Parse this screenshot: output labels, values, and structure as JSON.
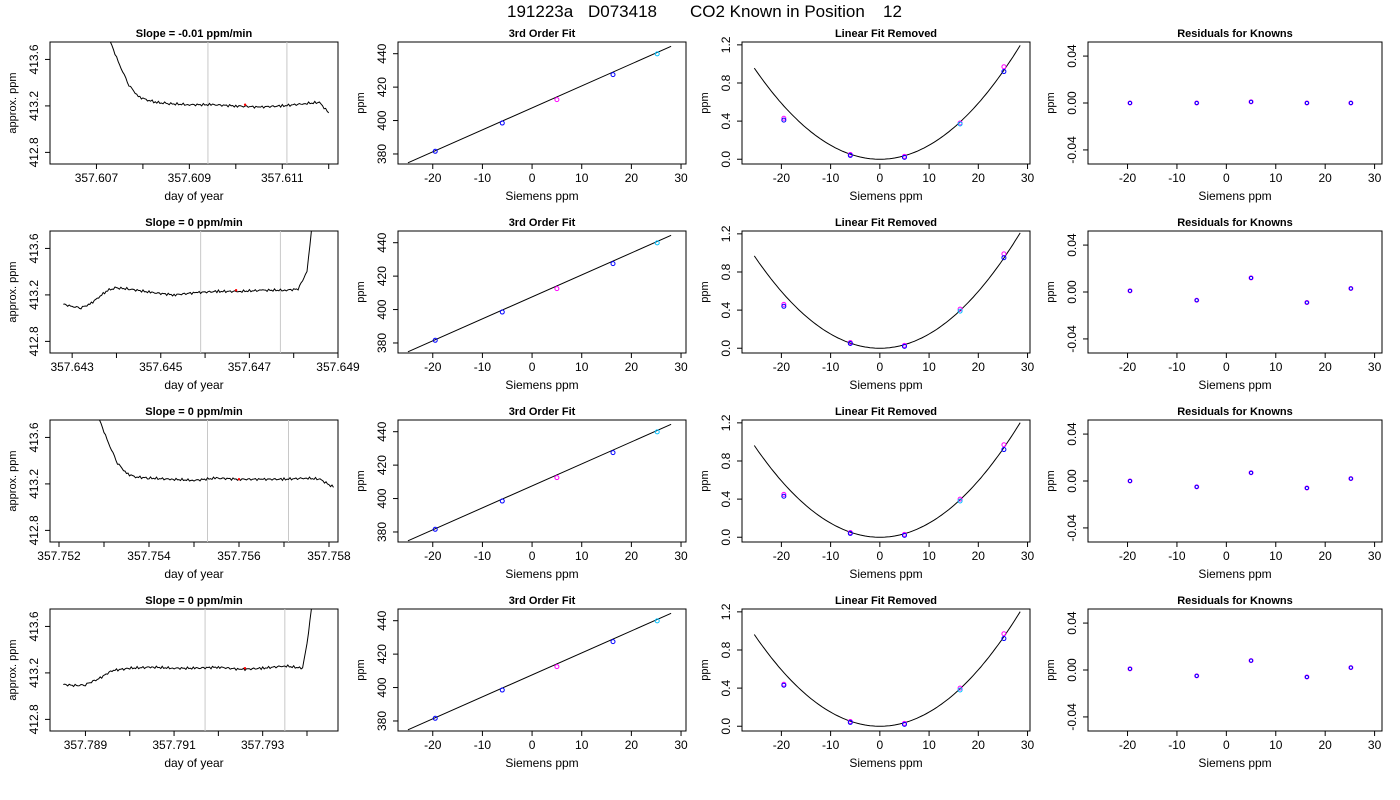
{
  "page_title": {
    "run_id": "191223a",
    "tank_id": "D073418",
    "description": "CO2 Known in Position",
    "position": "12"
  },
  "colors": {
    "trace": "#000000",
    "marker_line": "#c8c8c8",
    "points_primary": "#0000ff",
    "points_secondary": "#ff00ff",
    "points_cyan": "#00c0ff",
    "marker_red": "#ff0000"
  },
  "chart_data": [
    {
      "type": "line",
      "panel": "time-series",
      "row": 1,
      "title": "Slope =  -0.01  ppm/min",
      "xlabel": "day of year",
      "ylabel": "approx. ppm",
      "xlim": [
        357.606,
        357.6122
      ],
      "ylim": [
        412.7,
        413.75
      ],
      "xticks": [
        357.607,
        357.608,
        357.609,
        357.61,
        357.611,
        357.612
      ],
      "xtick_labels": [
        "357.607",
        "",
        "357.609",
        "",
        "357.611",
        ""
      ],
      "yticks": [
        412.8,
        413.2,
        413.6
      ],
      "ytick_labels": [
        "412.8",
        "413.2",
        "413.6"
      ],
      "x": [
        357.6073,
        357.6075,
        357.6077,
        357.6079,
        357.6081,
        357.6083,
        357.6085,
        357.609,
        357.6095,
        357.61,
        357.6105,
        357.611,
        357.6115,
        357.6118,
        357.612
      ],
      "y": [
        413.75,
        413.55,
        413.38,
        413.28,
        413.25,
        413.23,
        413.22,
        413.21,
        413.21,
        413.2,
        413.19,
        413.2,
        413.22,
        413.23,
        413.14
      ],
      "markers": [
        357.6094,
        357.6111
      ],
      "red_points": [
        [
          357.6102,
          413.21
        ]
      ]
    },
    {
      "type": "scatter",
      "panel": "fit",
      "row": 1,
      "title": "3rd Order Fit",
      "xlabel": "Siemens ppm",
      "ylabel": "ppm",
      "xlim": [
        -27,
        31
      ],
      "ylim": [
        374,
        447
      ],
      "xticks": [
        -20,
        -10,
        0,
        10,
        20,
        30
      ],
      "yticks": [
        380,
        400,
        420,
        440
      ],
      "x": [
        -19.5,
        -6.0,
        5.0,
        16.3,
        25.2
      ],
      "y": [
        381.6,
        398.5,
        412.5,
        427.5,
        439.9
      ],
      "line": [
        [
          -25,
          374.7
        ],
        [
          28,
          444.4
        ]
      ]
    },
    {
      "type": "scatter",
      "panel": "linear-removed",
      "row": 1,
      "title": "Linear Fit Removed",
      "xlabel": "Siemens ppm",
      "ylabel": "ppm",
      "xlim": [
        -28,
        30.5
      ],
      "ylim": [
        -0.05,
        1.23
      ],
      "xticks": [
        -20,
        -10,
        0,
        10,
        20,
        30
      ],
      "yticks": [
        0.0,
        0.4,
        0.8,
        1.2
      ],
      "ytick_labels": [
        "0.0",
        "0.4",
        "0.8",
        "1.2"
      ],
      "x": [
        -19.5,
        -6.0,
        5.0,
        16.3,
        25.2
      ],
      "y": [
        0.41,
        0.04,
        0.02,
        0.37,
        0.92
      ],
      "y_secondary": [
        0.43,
        0.05,
        0.03,
        0.38,
        0.97
      ],
      "curve_a": 0.00147,
      "curve_range": [
        -25.5,
        28.5
      ]
    },
    {
      "type": "scatter",
      "panel": "residuals",
      "row": 1,
      "title": "Residuals for Knowns",
      "xlabel": "Siemens ppm",
      "ylabel": "ppm",
      "xlim": [
        -28,
        31.5
      ],
      "ylim": [
        -0.052,
        0.052
      ],
      "xticks": [
        -20,
        -10,
        0,
        10,
        20,
        30
      ],
      "yticks": [
        -0.04,
        0.0,
        0.04
      ],
      "ytick_labels": [
        "-0.04",
        "0.00",
        "0.04"
      ],
      "x": [
        -19.5,
        -6.0,
        5.0,
        16.3,
        25.2
      ],
      "y": [
        0.0,
        0.0,
        0.001,
        0.0,
        0.0
      ]
    },
    {
      "type": "line",
      "panel": "time-series",
      "row": 2,
      "title": "Slope =  0  ppm/min",
      "xlabel": "day of year",
      "ylabel": "approx. ppm",
      "xlim": [
        357.6425,
        357.649
      ],
      "ylim": [
        412.7,
        413.75
      ],
      "xticks": [
        357.643,
        357.644,
        357.645,
        357.646,
        357.647,
        357.648,
        357.649
      ],
      "xtick_labels": [
        "357.643",
        "",
        "357.645",
        "",
        "357.647",
        "",
        "357.649"
      ],
      "yticks": [
        412.8,
        413.2,
        413.6
      ],
      "ytick_labels": [
        "412.8",
        "413.2",
        "413.6"
      ],
      "x": [
        357.6428,
        357.643,
        357.6432,
        357.6434,
        357.6436,
        357.6438,
        357.644,
        357.6443,
        357.6448,
        357.6453,
        357.6458,
        357.6463,
        357.6468,
        357.6473,
        357.6478,
        357.6481,
        357.6483,
        357.6484
      ],
      "y": [
        413.12,
        413.1,
        413.09,
        413.12,
        413.18,
        413.24,
        413.26,
        413.25,
        413.22,
        413.2,
        413.22,
        413.23,
        413.23,
        413.24,
        413.24,
        413.25,
        413.4,
        413.75
      ],
      "markers": [
        357.6459,
        357.6477
      ],
      "red_points": [
        [
          357.6467,
          413.24
        ]
      ]
    },
    {
      "type": "scatter",
      "panel": "fit",
      "row": 2,
      "title": "3rd Order Fit",
      "xlabel": "Siemens ppm",
      "ylabel": "ppm",
      "xlim": [
        -27,
        31
      ],
      "ylim": [
        374,
        447
      ],
      "xticks": [
        -20,
        -10,
        0,
        10,
        20,
        30
      ],
      "yticks": [
        380,
        400,
        420,
        440
      ],
      "x": [
        -19.5,
        -6.0,
        5.0,
        16.3,
        25.2
      ],
      "y": [
        381.6,
        398.5,
        412.5,
        427.5,
        439.9
      ],
      "line": [
        [
          -25,
          374.7
        ],
        [
          28,
          444.4
        ]
      ]
    },
    {
      "type": "scatter",
      "panel": "linear-removed",
      "row": 2,
      "title": "Linear Fit Removed",
      "xlabel": "Siemens ppm",
      "ylabel": "ppm",
      "xlim": [
        -28,
        30.5
      ],
      "ylim": [
        -0.05,
        1.23
      ],
      "xticks": [
        -20,
        -10,
        0,
        10,
        20,
        30
      ],
      "yticks": [
        0.0,
        0.4,
        0.8,
        1.2
      ],
      "ytick_labels": [
        "0.0",
        "0.4",
        "0.8",
        "1.2"
      ],
      "x": [
        -19.5,
        -6.0,
        5.0,
        16.3,
        25.2
      ],
      "y": [
        0.44,
        0.05,
        0.02,
        0.39,
        0.95
      ],
      "y_secondary": [
        0.46,
        0.06,
        0.03,
        0.41,
        0.99
      ],
      "curve_a": 0.00149,
      "curve_range": [
        -25.5,
        28.5
      ]
    },
    {
      "type": "scatter",
      "panel": "residuals",
      "row": 2,
      "title": "Residuals for Knowns",
      "xlabel": "Siemens ppm",
      "ylabel": "ppm",
      "xlim": [
        -28,
        31.5
      ],
      "ylim": [
        -0.052,
        0.052
      ],
      "xticks": [
        -20,
        -10,
        0,
        10,
        20,
        30
      ],
      "yticks": [
        -0.04,
        0.0,
        0.04
      ],
      "ytick_labels": [
        "-0.04",
        "0.00",
        "0.04"
      ],
      "x": [
        -19.5,
        -6.0,
        5.0,
        16.3,
        25.2
      ],
      "y": [
        0.001,
        -0.007,
        0.012,
        -0.009,
        0.003
      ]
    },
    {
      "type": "line",
      "panel": "time-series",
      "row": 3,
      "title": "Slope =  0  ppm/min",
      "xlabel": "day of year",
      "ylabel": "approx. ppm",
      "xlim": [
        357.7518,
        357.7582
      ],
      "ylim": [
        412.7,
        413.75
      ],
      "xticks": [
        357.752,
        357.753,
        357.754,
        357.755,
        357.756,
        357.757,
        357.758
      ],
      "xtick_labels": [
        "357.752",
        "",
        "357.754",
        "",
        "357.756",
        "",
        "357.758"
      ],
      "yticks": [
        412.8,
        413.2,
        413.6
      ],
      "ytick_labels": [
        "412.8",
        "413.2",
        "413.6"
      ],
      "x": [
        357.7529,
        357.7531,
        357.7533,
        357.7535,
        357.7537,
        357.754,
        357.7545,
        357.755,
        357.7555,
        357.756,
        357.7565,
        357.757,
        357.7575,
        357.7578,
        357.7581
      ],
      "y": [
        413.75,
        413.55,
        413.38,
        413.29,
        413.26,
        413.25,
        413.24,
        413.23,
        413.25,
        413.24,
        413.24,
        413.24,
        413.25,
        413.24,
        413.17
      ],
      "markers": [
        357.7553,
        357.7571
      ],
      "red_points": [
        [
          357.756,
          413.24
        ]
      ]
    },
    {
      "type": "scatter",
      "panel": "fit",
      "row": 3,
      "title": "3rd Order Fit",
      "xlabel": "Siemens ppm",
      "ylabel": "ppm",
      "xlim": [
        -27,
        31
      ],
      "ylim": [
        374,
        447
      ],
      "xticks": [
        -20,
        -10,
        0,
        10,
        20,
        30
      ],
      "yticks": [
        380,
        400,
        420,
        440
      ],
      "x": [
        -19.5,
        -6.0,
        5.0,
        16.3,
        25.2
      ],
      "y": [
        381.6,
        398.5,
        412.5,
        427.5,
        439.9
      ],
      "line": [
        [
          -25,
          374.7
        ],
        [
          28,
          444.4
        ]
      ]
    },
    {
      "type": "scatter",
      "panel": "linear-removed",
      "row": 3,
      "title": "Linear Fit Removed",
      "xlabel": "Siemens ppm",
      "ylabel": "ppm",
      "xlim": [
        -28,
        30.5
      ],
      "ylim": [
        -0.05,
        1.23
      ],
      "xticks": [
        -20,
        -10,
        0,
        10,
        20,
        30
      ],
      "yticks": [
        0.0,
        0.4,
        0.8,
        1.2
      ],
      "ytick_labels": [
        "0.0",
        "0.4",
        "0.8",
        "1.2"
      ],
      "x": [
        -19.5,
        -6.0,
        5.0,
        16.3,
        25.2
      ],
      "y": [
        0.43,
        0.04,
        0.02,
        0.38,
        0.92
      ],
      "y_secondary": [
        0.45,
        0.05,
        0.03,
        0.4,
        0.97
      ],
      "curve_a": 0.00148,
      "curve_range": [
        -25.5,
        28.5
      ]
    },
    {
      "type": "scatter",
      "panel": "residuals",
      "row": 3,
      "title": "Residuals for Knowns",
      "xlabel": "Siemens ppm",
      "ylabel": "ppm",
      "xlim": [
        -28,
        31.5
      ],
      "ylim": [
        -0.052,
        0.052
      ],
      "xticks": [
        -20,
        -10,
        0,
        10,
        20,
        30
      ],
      "yticks": [
        -0.04,
        0.0,
        0.04
      ],
      "ytick_labels": [
        "-0.04",
        "0.00",
        "0.04"
      ],
      "x": [
        -19.5,
        -6.0,
        5.0,
        16.3,
        25.2
      ],
      "y": [
        0.0,
        -0.005,
        0.007,
        -0.006,
        0.002
      ]
    },
    {
      "type": "line",
      "panel": "time-series",
      "row": 4,
      "title": "Slope =  0  ppm/min",
      "xlabel": "day of year",
      "ylabel": "approx. ppm",
      "xlim": [
        357.7882,
        357.7947
      ],
      "ylim": [
        412.7,
        413.75
      ],
      "xticks": [
        357.789,
        357.79,
        357.791,
        357.792,
        357.793,
        357.794
      ],
      "xtick_labels": [
        "357.789",
        "",
        "357.791",
        "",
        "357.793",
        ""
      ],
      "yticks": [
        412.8,
        413.2,
        413.6
      ],
      "ytick_labels": [
        "412.8",
        "413.2",
        "413.6"
      ],
      "x": [
        357.7885,
        357.7888,
        357.789,
        357.7893,
        357.7896,
        357.79,
        357.7905,
        357.791,
        357.7915,
        357.792,
        357.7925,
        357.793,
        357.7935,
        357.7939,
        357.794,
        357.7941
      ],
      "y": [
        413.1,
        413.09,
        413.1,
        413.15,
        413.22,
        413.24,
        413.25,
        413.24,
        413.24,
        413.25,
        413.23,
        413.24,
        413.26,
        413.24,
        413.45,
        413.75
      ],
      "markers": [
        357.7917,
        357.7935
      ],
      "red_points": [
        [
          357.7926,
          413.24
        ]
      ]
    },
    {
      "type": "scatter",
      "panel": "fit",
      "row": 4,
      "title": "3rd Order Fit",
      "xlabel": "Siemens ppm",
      "ylabel": "ppm",
      "xlim": [
        -27,
        31
      ],
      "ylim": [
        374,
        447
      ],
      "xticks": [
        -20,
        -10,
        0,
        10,
        20,
        30
      ],
      "yticks": [
        380,
        400,
        420,
        440
      ],
      "x": [
        -19.5,
        -6.0,
        5.0,
        16.3,
        25.2
      ],
      "y": [
        381.6,
        398.5,
        412.5,
        427.5,
        439.9
      ],
      "line": [
        [
          -25,
          374.7
        ],
        [
          28,
          444.4
        ]
      ]
    },
    {
      "type": "scatter",
      "panel": "linear-removed",
      "row": 4,
      "title": "Linear Fit Removed",
      "xlabel": "Siemens ppm",
      "ylabel": "ppm",
      "xlim": [
        -28,
        30.5
      ],
      "ylim": [
        -0.05,
        1.23
      ],
      "xticks": [
        -20,
        -10,
        0,
        10,
        20,
        30
      ],
      "yticks": [
        0.0,
        0.4,
        0.8,
        1.2
      ],
      "ytick_labels": [
        "0.0",
        "0.4",
        "0.8",
        "1.2"
      ],
      "x": [
        -19.5,
        -6.0,
        5.0,
        16.3,
        25.2
      ],
      "y": [
        0.43,
        0.04,
        0.02,
        0.38,
        0.92
      ],
      "y_secondary": [
        0.44,
        0.05,
        0.03,
        0.4,
        0.97
      ],
      "curve_a": 0.00148,
      "curve_range": [
        -25.5,
        28.5
      ]
    },
    {
      "type": "scatter",
      "panel": "residuals",
      "row": 4,
      "title": "Residuals for Knowns",
      "xlabel": "Siemens ppm",
      "ylabel": "ppm",
      "xlim": [
        -28,
        31.5
      ],
      "ylim": [
        -0.052,
        0.052
      ],
      "xticks": [
        -20,
        -10,
        0,
        10,
        20,
        30
      ],
      "yticks": [
        -0.04,
        0.0,
        0.04
      ],
      "ytick_labels": [
        "-0.04",
        "0.00",
        "0.04"
      ],
      "x": [
        -19.5,
        -6.0,
        5.0,
        16.3,
        25.2
      ],
      "y": [
        0.001,
        -0.005,
        0.008,
        -0.006,
        0.002
      ]
    }
  ]
}
